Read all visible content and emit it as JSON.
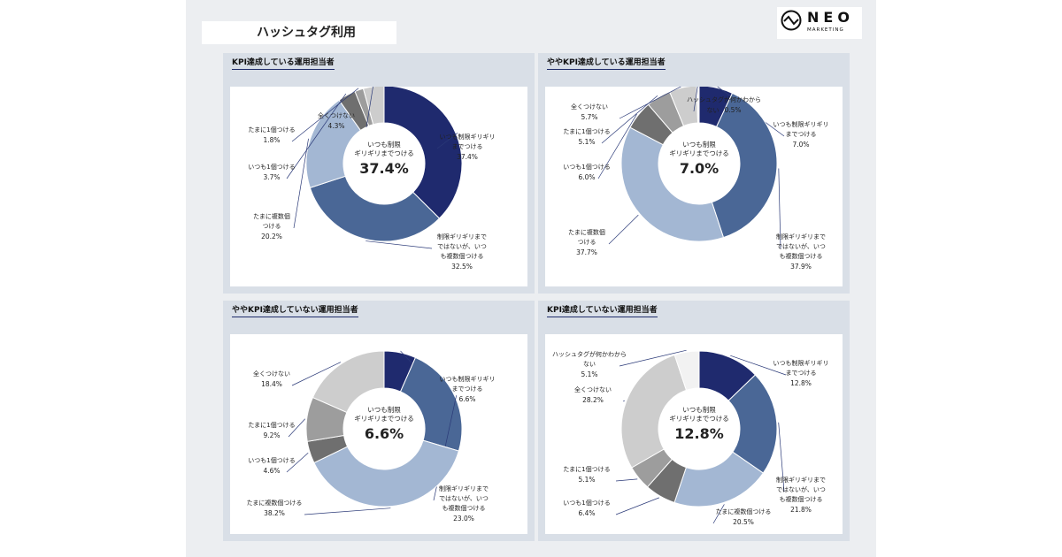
{
  "header": {
    "title": "ハッシュタグ利用",
    "logo_text": "NEO",
    "logo_sub": "MARKETING"
  },
  "center_label": "いつも制限\nギリギリまでつける",
  "colors": {
    "always_limit": "#1f2a6e",
    "multi": "#4a6796",
    "sometimes_multi": "#a3b7d3",
    "always_one": "#6f6f6f",
    "sometimes_one": "#9d9d9d",
    "never": "#cdcdcd",
    "unknown": "#f2f2f2"
  },
  "chart_data": [
    {
      "type": "donut",
      "title": "KPI達成している運用担当者",
      "center_value": "37.4%",
      "slices": [
        {
          "key": "always_limit",
          "label": "いつも制限ギリギリ\nまでつける",
          "value": 37.4,
          "value_text": "37.4%"
        },
        {
          "key": "multi",
          "label": "制限ギリギリまで\nではないが、いつ\nも複数個つける",
          "value": 32.5,
          "value_text": "32.5%"
        },
        {
          "key": "sometimes_multi",
          "label": "たまに複数個\nつける",
          "value": 20.2,
          "value_text": "20.2%"
        },
        {
          "key": "always_one",
          "label": "いつも1個つける",
          "value": 3.7,
          "value_text": "3.7%"
        },
        {
          "key": "sometimes_one",
          "label": "たまに1個つける",
          "value": 1.8,
          "value_text": "1.8%"
        },
        {
          "key": "never",
          "label": "全くつけない",
          "value": 4.3,
          "value_text": "4.3%"
        }
      ]
    },
    {
      "type": "donut",
      "title": "ややKPI達成している運用担当者",
      "center_value": "7.0%",
      "slices": [
        {
          "key": "always_limit",
          "label": "いつも制限ギリギリ\nまでつける",
          "value": 7.0,
          "value_text": "7.0%"
        },
        {
          "key": "multi",
          "label": "制限ギリギリまで\nではないが、いつ\nも複数個つける",
          "value": 37.9,
          "value_text": "37.9%"
        },
        {
          "key": "sometimes_multi",
          "label": "たまに複数個\nつける",
          "value": 37.7,
          "value_text": "37.7%"
        },
        {
          "key": "always_one",
          "label": "いつも1個つける",
          "value": 6.0,
          "value_text": "6.0%"
        },
        {
          "key": "sometimes_one",
          "label": "たまに1個つける",
          "value": 5.1,
          "value_text": "5.1%"
        },
        {
          "key": "never",
          "label": "全くつけない",
          "value": 5.7,
          "value_text": "5.7%"
        },
        {
          "key": "unknown",
          "label": "ハッシュタグが何かわからない",
          "value": 0.5,
          "value_text": "0.5%"
        }
      ]
    },
    {
      "type": "donut",
      "title": "ややKPI達成していない運用担当者",
      "center_value": "6.6%",
      "slices": [
        {
          "key": "always_limit",
          "label": "いつも制限ギリギリ\nまでつける",
          "value": 6.6,
          "value_text": "6.6%"
        },
        {
          "key": "multi",
          "label": "制限ギリギリまで\nではないが、いつ\nも複数個つける",
          "value": 23.0,
          "value_text": "23.0%"
        },
        {
          "key": "sometimes_multi",
          "label": "たまに複数個つける",
          "value": 38.2,
          "value_text": "38.2%"
        },
        {
          "key": "always_one",
          "label": "いつも1個つける",
          "value": 4.6,
          "value_text": "4.6%"
        },
        {
          "key": "sometimes_one",
          "label": "たまに1個つける",
          "value": 9.2,
          "value_text": "9.2%"
        },
        {
          "key": "never",
          "label": "全くつけない",
          "value": 18.4,
          "value_text": "18.4%"
        }
      ]
    },
    {
      "type": "donut",
      "title": "KPI達成していない運用担当者",
      "center_value": "12.8%",
      "slices": [
        {
          "key": "always_limit",
          "label": "いつも制限ギリギリ\nまでつける",
          "value": 12.8,
          "value_text": "12.8%"
        },
        {
          "key": "multi",
          "label": "制限ギリギリまで\nではないが、いつ\nも複数個つける",
          "value": 21.8,
          "value_text": "21.8%"
        },
        {
          "key": "sometimes_multi",
          "label": "たまに複数個つける",
          "value": 20.5,
          "value_text": "20.5%"
        },
        {
          "key": "always_one",
          "label": "いつも1個つける",
          "value": 6.4,
          "value_text": "6.4%"
        },
        {
          "key": "sometimes_one",
          "label": "たまに1個つける",
          "value": 5.1,
          "value_text": "5.1%"
        },
        {
          "key": "never",
          "label": "全くつけない",
          "value": 28.2,
          "value_text": "28.2%"
        },
        {
          "key": "unknown",
          "label": "ハッシュタグが何かわからない",
          "value": 5.1,
          "value_text": "5.1%"
        }
      ]
    }
  ]
}
